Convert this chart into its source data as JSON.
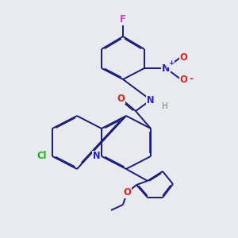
{
  "bg_color": "#e8eaf0",
  "bc": "#1a1a7a",
  "atom_colors": {
    "F": "#cc44cc",
    "Cl": "#22aa22",
    "O": "#dd2222",
    "N": "#2222cc",
    "H": "#777777",
    "Nplus": "#2222cc",
    "Ominus": "#dd2222"
  },
  "lw": 1.4,
  "lw_inner": 1.1,
  "fs": 7.8
}
